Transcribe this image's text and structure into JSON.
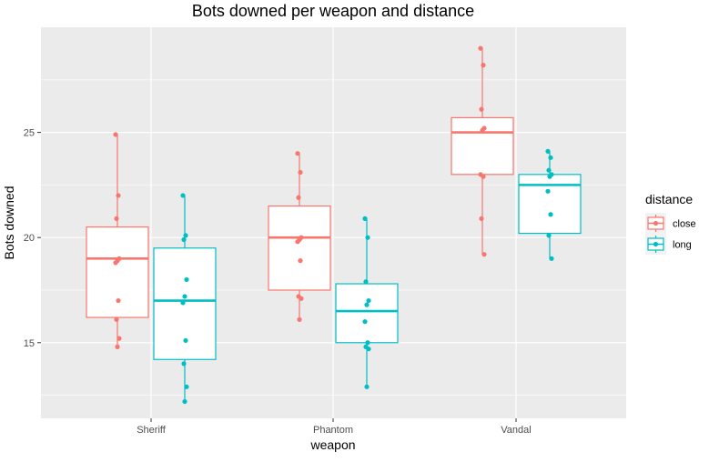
{
  "chart_data": {
    "type": "boxplot",
    "title": "Bots downed per weapon and distance",
    "xlabel": "weapon",
    "ylabel": "Bots downed",
    "categories": [
      "Sheriff",
      "Phantom",
      "Vandal"
    ],
    "ylim": [
      11.4,
      30.0
    ],
    "yticks": [
      15,
      20,
      25
    ],
    "grid": true,
    "legend": {
      "title": "distance",
      "position": "right"
    },
    "series": [
      {
        "name": "close",
        "color": "#f8766d",
        "boxes": [
          {
            "category": "Sheriff",
            "min": 14.8,
            "q1": 16.2,
            "median": 19.0,
            "q3": 20.5,
            "max": 24.9,
            "points": [
              24.9,
              22.0,
              20.9,
              19.0,
              18.9,
              18.8,
              17.0,
              16.1,
              15.2,
              14.8
            ]
          },
          {
            "category": "Phantom",
            "min": 16.1,
            "q1": 17.5,
            "median": 20.0,
            "q3": 21.5,
            "max": 24.0,
            "points": [
              24.0,
              23.1,
              21.9,
              20.0,
              19.9,
              19.8,
              18.9,
              17.2,
              17.1,
              16.1
            ]
          },
          {
            "category": "Vandal",
            "min": 19.2,
            "q1": 23.0,
            "median": 25.0,
            "q3": 25.7,
            "max": 29.0,
            "points": [
              29.0,
              28.2,
              26.1,
              25.2,
              25.1,
              23.0,
              22.9,
              20.9,
              19.2
            ]
          }
        ]
      },
      {
        "name": "long",
        "color": "#00bfc4",
        "boxes": [
          {
            "category": "Sheriff",
            "min": 12.2,
            "q1": 14.2,
            "median": 17.0,
            "q3": 19.5,
            "max": 22.0,
            "points": [
              22.0,
              20.1,
              19.9,
              18.0,
              17.2,
              16.9,
              15.1,
              14.0,
              12.9,
              12.2
            ]
          },
          {
            "category": "Phantom",
            "min": 12.9,
            "q1": 15.0,
            "median": 16.5,
            "q3": 17.8,
            "max": 20.9,
            "points": [
              20.9,
              20.0,
              17.9,
              17.0,
              16.8,
              16.0,
              15.0,
              14.8,
              14.7,
              12.9
            ]
          },
          {
            "category": "Vandal",
            "min": 19.0,
            "q1": 20.2,
            "median": 22.5,
            "q3": 23.0,
            "max": 24.1,
            "points": [
              24.1,
              23.8,
              23.2,
              23.0,
              22.9,
              22.2,
              21.1,
              20.1,
              19.0
            ]
          }
        ]
      }
    ]
  }
}
